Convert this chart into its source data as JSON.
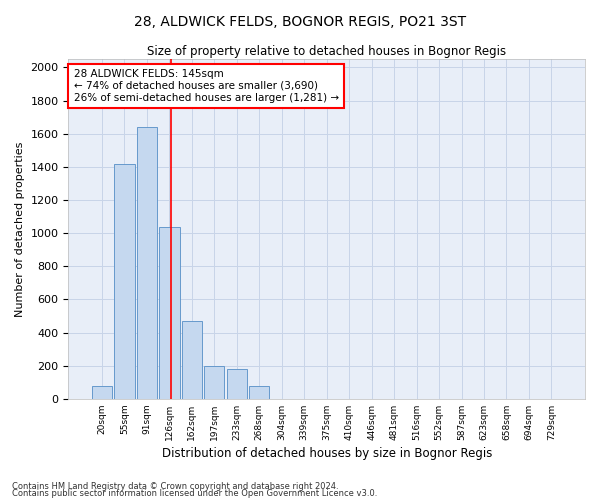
{
  "title": "28, ALDWICK FELDS, BOGNOR REGIS, PO21 3ST",
  "subtitle": "Size of property relative to detached houses in Bognor Regis",
  "xlabel": "Distribution of detached houses by size in Bognor Regis",
  "ylabel": "Number of detached properties",
  "footnote1": "Contains HM Land Registry data © Crown copyright and database right 2024.",
  "footnote2": "Contains public sector information licensed under the Open Government Licence v3.0.",
  "annotation_line1": "28 ALDWICK FELDS: 145sqm",
  "annotation_line2": "← 74% of detached houses are smaller (3,690)",
  "annotation_line3": "26% of semi-detached houses are larger (1,281) →",
  "bar_color": "#c5d8ef",
  "bar_edge_color": "#6699cc",
  "vline_color": "red",
  "annotation_box_color": "red",
  "grid_color": "#c8d4e8",
  "bg_color": "#e8eef8",
  "categories": [
    "20sqm",
    "55sqm",
    "91sqm",
    "126sqm",
    "162sqm",
    "197sqm",
    "233sqm",
    "268sqm",
    "304sqm",
    "339sqm",
    "375sqm",
    "410sqm",
    "446sqm",
    "481sqm",
    "516sqm",
    "552sqm",
    "587sqm",
    "623sqm",
    "658sqm",
    "694sqm",
    "729sqm"
  ],
  "values": [
    75,
    1420,
    1640,
    1040,
    470,
    200,
    180,
    75,
    0,
    0,
    0,
    0,
    0,
    0,
    0,
    0,
    0,
    0,
    0,
    0,
    0
  ],
  "vline_x": 3.08,
  "ylim": [
    0,
    2050
  ],
  "yticks": [
    0,
    200,
    400,
    600,
    800,
    1000,
    1200,
    1400,
    1600,
    1800,
    2000
  ]
}
